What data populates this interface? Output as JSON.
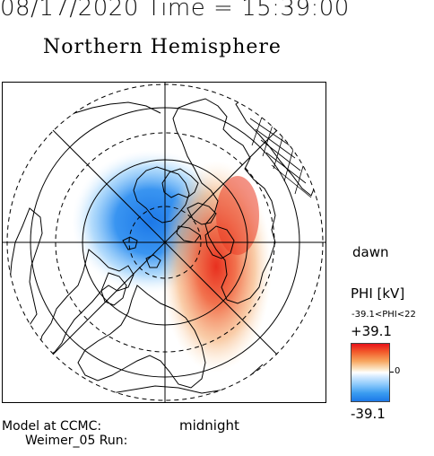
{
  "header": {
    "timestamp": "08/17/2020 Time = 15:39:00",
    "hemisphere": "Northern Hemisphere"
  },
  "map": {
    "dawn_label": "dawn",
    "midnight_label": "midnight",
    "colors": {
      "positive": "#e8121a",
      "negative": "#1c78e8",
      "zero": "#ffffff"
    }
  },
  "legend": {
    "title": "PHI [kV]",
    "range_text": "-39.1<PHI<22",
    "max_label": "+39.1",
    "zero_label": "0",
    "min_label": "-39.1"
  },
  "footer": {
    "model_label": "Model at CCMC:",
    "run_label": "Weimer_05 Run:"
  }
}
